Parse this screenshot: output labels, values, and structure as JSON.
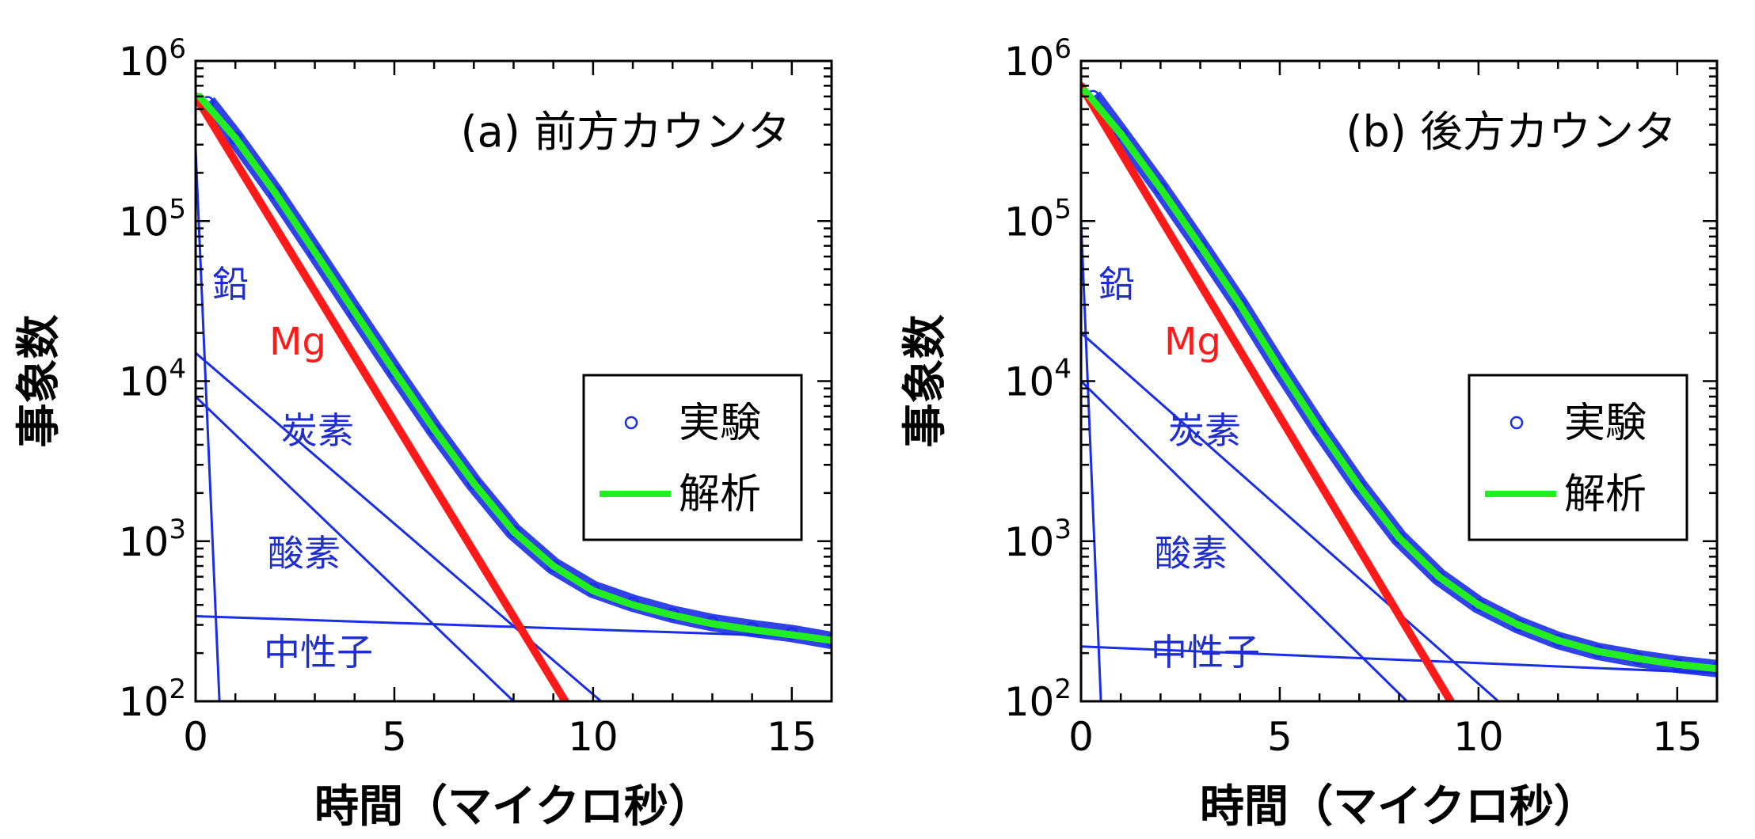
{
  "colors": {
    "frame": "#000000",
    "component": "#1a2ee6",
    "component_label": "#1f2ecc",
    "mg": "#ff1a1a",
    "fit": "#22ee22",
    "data_marker": "#1a2ee6"
  },
  "shared": {
    "xlabel": "時間（マイクロ秒）",
    "ylabel": "事象数",
    "x_ticks": [
      "0",
      "5",
      "10",
      "15"
    ],
    "y_ticks": [
      {
        "base": "10",
        "exp": "2"
      },
      {
        "base": "10",
        "exp": "3"
      },
      {
        "base": "10",
        "exp": "4"
      },
      {
        "base": "10",
        "exp": "5"
      },
      {
        "base": "10",
        "exp": "6"
      }
    ],
    "legend": {
      "experiment": "実験",
      "fit": "解析"
    },
    "component_labels": {
      "lead": "鉛",
      "mg": "Mg",
      "carbon": "炭素",
      "oxygen": "酸素",
      "neutron": "中性子"
    }
  },
  "chart_data": [
    {
      "type": "line",
      "title": "(a) 前方カウンタ",
      "xlabel": "時間（マイクロ秒）",
      "ylabel": "事象数",
      "xlim": [
        0,
        16
      ],
      "ylim": [
        100,
        1000000
      ],
      "yscale": "log",
      "legend_position": "right",
      "series": [
        {
          "name": "鉛",
          "kind": "component",
          "x": [
            0,
            0.6
          ],
          "y": [
            280000,
            100
          ]
        },
        {
          "name": "Mg",
          "kind": "mg",
          "x": [
            0,
            9.3
          ],
          "y": [
            600000,
            100
          ]
        },
        {
          "name": "炭素",
          "kind": "component",
          "x": [
            0,
            10.2
          ],
          "y": [
            15000,
            100
          ]
        },
        {
          "name": "酸素",
          "kind": "component",
          "x": [
            0,
            8.0
          ],
          "y": [
            8000,
            100
          ]
        },
        {
          "name": "中性子",
          "kind": "component",
          "x": [
            0,
            16
          ],
          "y": [
            340,
            250
          ]
        },
        {
          "name": "実験",
          "kind": "data",
          "x": [
            0.3,
            1,
            2,
            3,
            4,
            5,
            6,
            7,
            8,
            9,
            10,
            11,
            12,
            13,
            14,
            15,
            16
          ],
          "y": [
            550000,
            330000,
            150000,
            64000,
            27000,
            11500,
            5000,
            2300,
            1150,
            700,
            500,
            410,
            350,
            310,
            285,
            265,
            240
          ]
        },
        {
          "name": "解析",
          "kind": "fit",
          "x": [
            0.1,
            1,
            2,
            3,
            4,
            5,
            6,
            7,
            8,
            9,
            10,
            11,
            12,
            13,
            14,
            15,
            16
          ],
          "y": [
            600000,
            330000,
            150000,
            64000,
            27000,
            11500,
            5000,
            2300,
            1150,
            700,
            490,
            400,
            345,
            305,
            280,
            260,
            240
          ]
        }
      ]
    },
    {
      "type": "line",
      "title": "(b) 後方カウンタ",
      "xlabel": "時間（マイクロ秒）",
      "ylabel": "事象数",
      "xlim": [
        0,
        16
      ],
      "ylim": [
        100,
        1000000
      ],
      "yscale": "log",
      "legend_position": "right",
      "series": [
        {
          "name": "鉛",
          "kind": "component",
          "x": [
            0,
            0.5
          ],
          "y": [
            100000,
            100
          ]
        },
        {
          "name": "Mg",
          "kind": "mg",
          "x": [
            0,
            9.3
          ],
          "y": [
            700000,
            100
          ]
        },
        {
          "name": "炭素",
          "kind": "component",
          "x": [
            0,
            10.5
          ],
          "y": [
            20000,
            100
          ]
        },
        {
          "name": "酸素",
          "kind": "component",
          "x": [
            0,
            8.2
          ],
          "y": [
            10000,
            100
          ]
        },
        {
          "name": "中性子",
          "kind": "component",
          "x": [
            0,
            16
          ],
          "y": [
            220,
            150
          ]
        },
        {
          "name": "実験",
          "kind": "data",
          "x": [
            0.3,
            1,
            2,
            3,
            4,
            5,
            6,
            7,
            8,
            9,
            10,
            11,
            12,
            13,
            14,
            15,
            16
          ],
          "y": [
            600000,
            350000,
            160000,
            70000,
            30000,
            12000,
            5000,
            2200,
            1050,
            600,
            400,
            300,
            240,
            205,
            185,
            170,
            160
          ]
        },
        {
          "name": "解析",
          "kind": "fit",
          "x": [
            0.1,
            1,
            2,
            3,
            4,
            5,
            6,
            7,
            8,
            9,
            10,
            11,
            12,
            13,
            14,
            15,
            16
          ],
          "y": [
            650000,
            350000,
            160000,
            70000,
            30000,
            12000,
            5000,
            2200,
            1050,
            600,
            400,
            300,
            240,
            205,
            185,
            170,
            160
          ]
        }
      ]
    }
  ]
}
